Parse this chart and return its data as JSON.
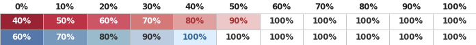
{
  "header": [
    "0%",
    "10%",
    "20%",
    "30%",
    "40%",
    "50%",
    "60%",
    "70%",
    "80%",
    "90%",
    "100%"
  ],
  "row1_labels": [
    "40%",
    "50%",
    "60%",
    "70%",
    "80%",
    "90%",
    "100%",
    "100%",
    "100%",
    "100%",
    "100%"
  ],
  "row2_labels": [
    "60%",
    "70%",
    "80%",
    "90%",
    "100%",
    "100%",
    "100%",
    "100%",
    "100%",
    "100%",
    "100%"
  ],
  "row1_bg": [
    "#992233",
    "#bb3344",
    "#cc5566",
    "#d47878",
    "#e0a0a0",
    "#edc8c8",
    "#ffffff",
    "#ffffff",
    "#ffffff",
    "#ffffff",
    "#ffffff"
  ],
  "row2_bg": [
    "#5577aa",
    "#7799bb",
    "#99bbcc",
    "#bbcce0",
    "#ddeeff",
    "#ffffff",
    "#ffffff",
    "#ffffff",
    "#ffffff",
    "#ffffff",
    "#ffffff"
  ],
  "row1_text_colors": [
    "#ffffff",
    "#ffffff",
    "#ffffff",
    "#ffffff",
    "#aa3333",
    "#aa3333",
    "#333333",
    "#333333",
    "#333333",
    "#333333",
    "#333333"
  ],
  "row2_text_colors": [
    "#ffffff",
    "#ffffff",
    "#333333",
    "#333333",
    "#336699",
    "#333333",
    "#333333",
    "#333333",
    "#333333",
    "#333333",
    "#333333"
  ],
  "header_text_color": "#222222",
  "background_color": "#ffffff",
  "border_color": "#bbbbbb",
  "n_cols": 11,
  "header_fontsize": 8.5,
  "data_fontsize": 8.5,
  "fig_width": 6.96,
  "fig_height": 0.67
}
